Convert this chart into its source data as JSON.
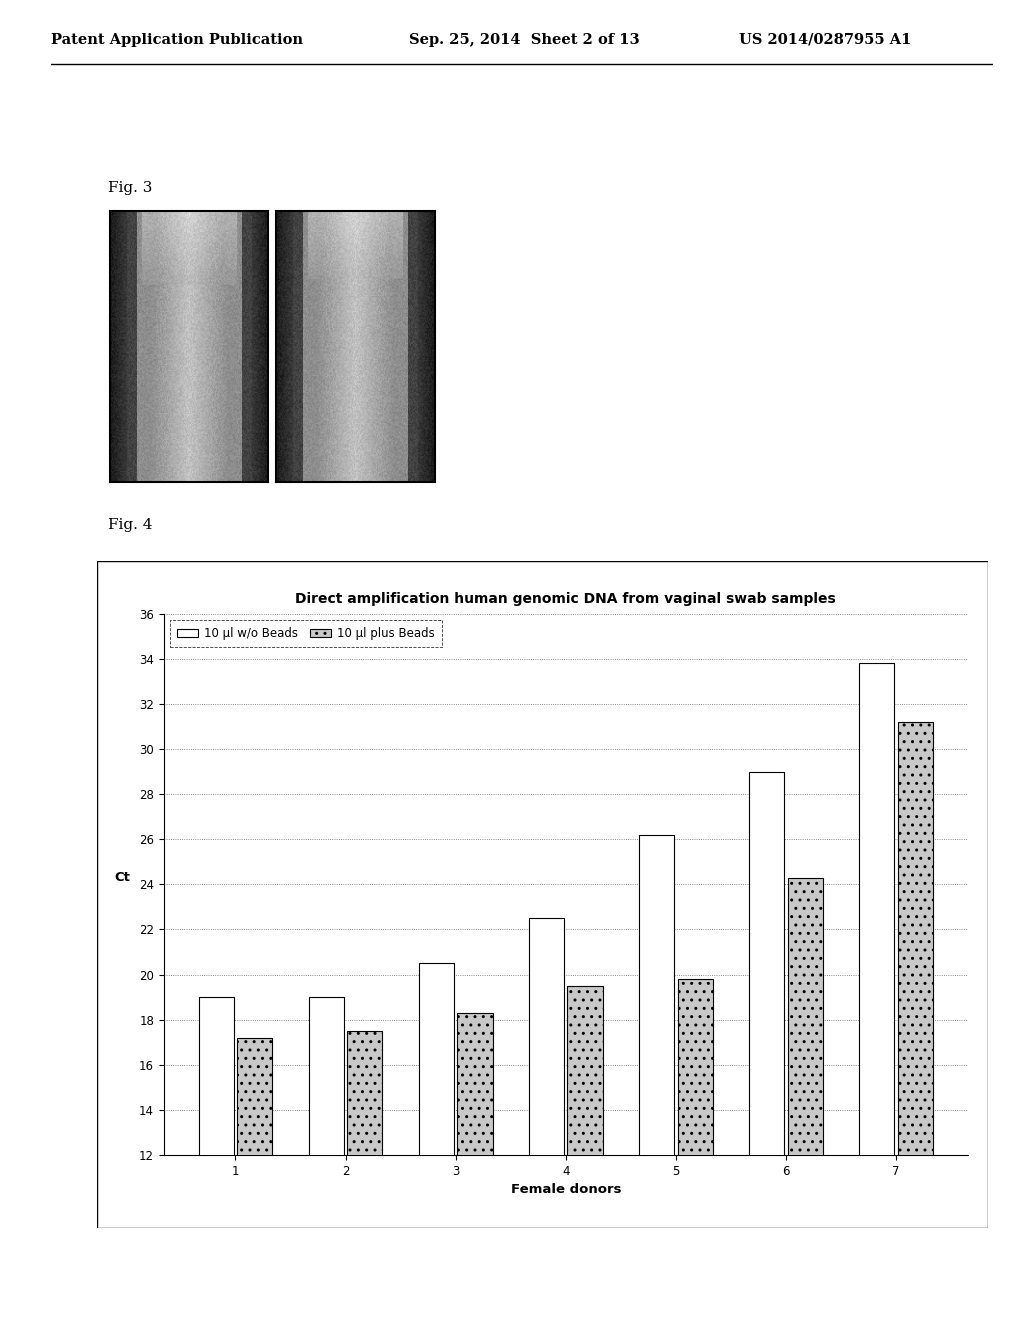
{
  "header_left": "Patent Application Publication",
  "header_mid": "Sep. 25, 2014  Sheet 2 of 13",
  "header_right": "US 2014/0287955 A1",
  "fig3_label": "Fig. 3",
  "fig4_label": "Fig. 4",
  "chart_title": "Direct amplification human genomic DNA from vaginal swab samples",
  "xlabel": "Female donors",
  "ylabel": "Ct",
  "legend_1": "10 μl w/o Beads",
  "legend_2": "10 μl plus Beads",
  "categories": [
    1,
    2,
    3,
    4,
    5,
    6,
    7
  ],
  "values_wo_beads": [
    19.0,
    19.0,
    20.5,
    22.5,
    26.2,
    29.0,
    33.8
  ],
  "values_plus_beads": [
    17.2,
    17.5,
    18.3,
    19.5,
    19.8,
    24.3,
    31.2
  ],
  "ylim_min": 12,
  "ylim_max": 36,
  "yticks": [
    12,
    14,
    16,
    18,
    20,
    22,
    24,
    26,
    28,
    30,
    32,
    34,
    36
  ],
  "bar_color_wo": "#ffffff",
  "bar_color_plus": "#aaaaaa",
  "bar_edgecolor": "#000000",
  "chart_bg": "#ffffff",
  "page_bg": "#ffffff",
  "header_fontsize": 10.5,
  "fig_label_fontsize": 11,
  "title_fontsize": 10,
  "axis_label_fontsize": 9.5,
  "tick_fontsize": 8.5,
  "legend_fontsize": 8.5
}
